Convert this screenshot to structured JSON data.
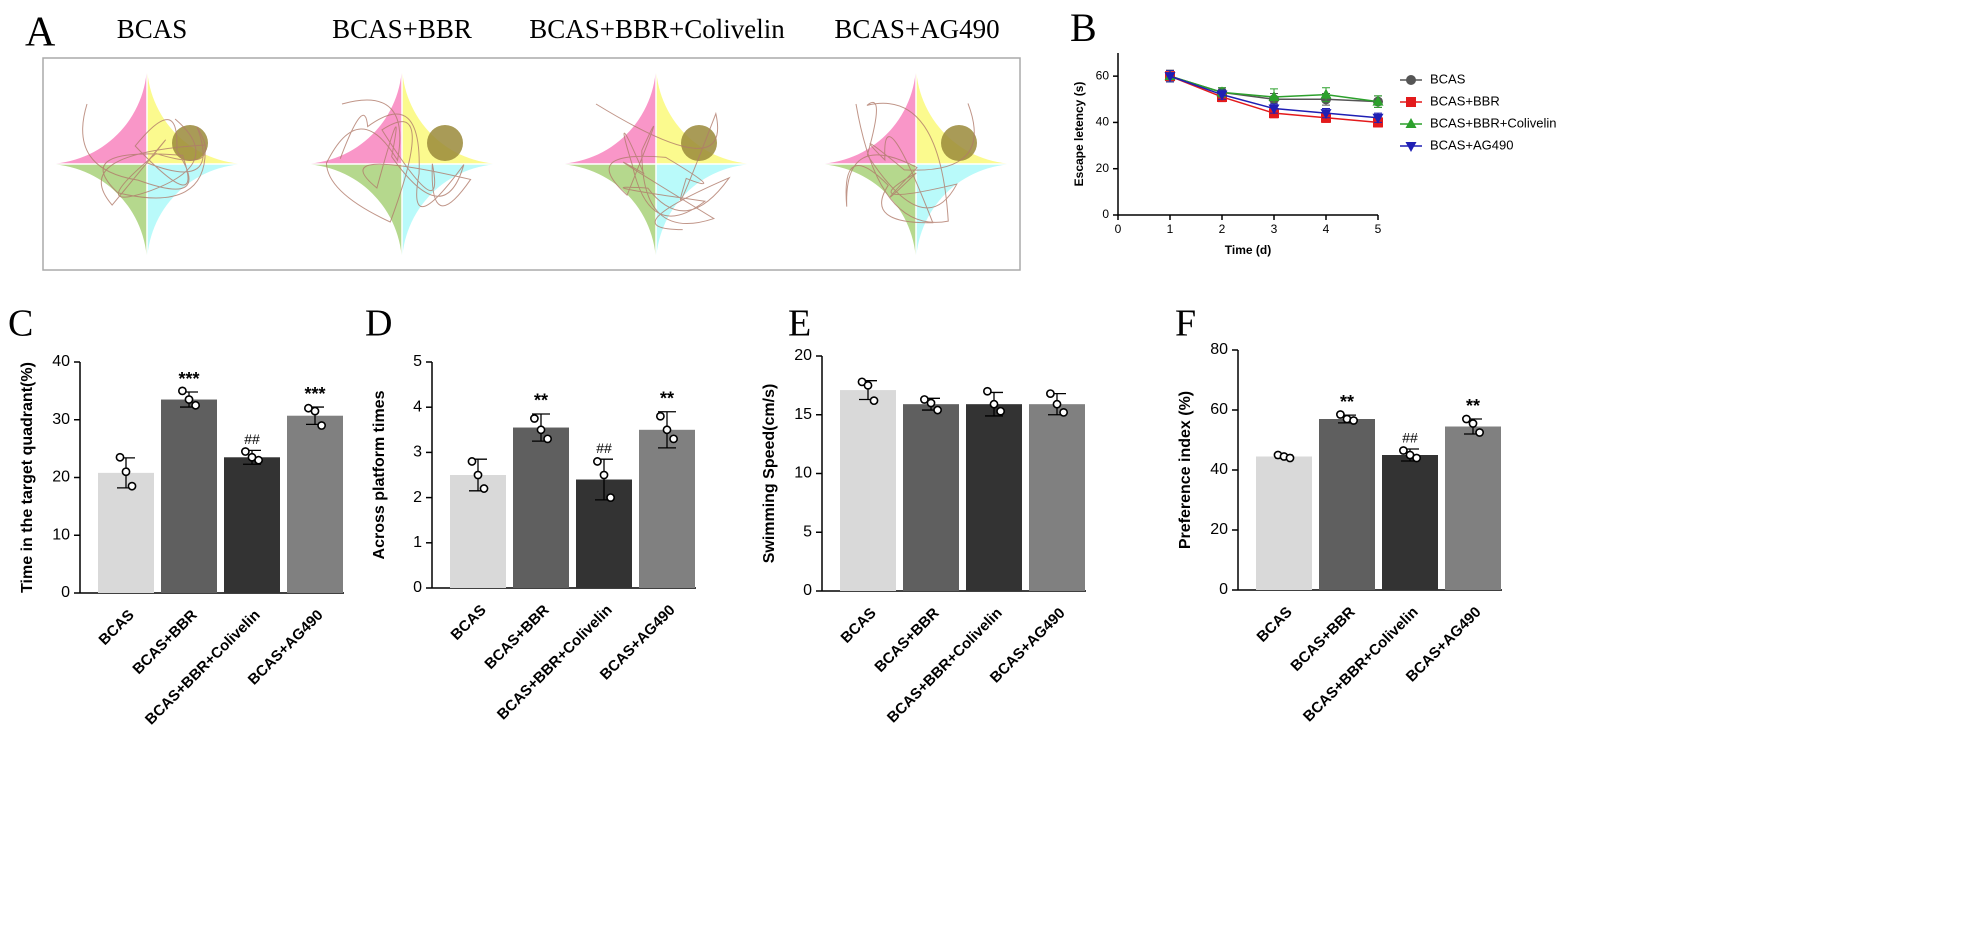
{
  "panel_a": {
    "letter": "A",
    "groups": [
      "BCAS",
      "BCAS+BBR",
      "BCAS+BBR+Colivelin",
      "BCAS+AG490"
    ]
  },
  "chart_data": [
    {
      "type": "line",
      "panel": "B",
      "xlabel": "Time (d)",
      "ylabel": "Escape letency (s)",
      "x": [
        1,
        2,
        3,
        4,
        5
      ],
      "xlim": [
        0,
        5
      ],
      "xticks": [
        0,
        1,
        2,
        3,
        4,
        5
      ],
      "ylim": [
        0,
        70
      ],
      "yticks": [
        0,
        20,
        40,
        60
      ],
      "series": [
        {
          "name": "BCAS",
          "color": "#555555",
          "marker": "circle",
          "values": [
            60,
            53,
            50,
            50,
            49
          ],
          "errors": [
            2.5,
            2,
            2.5,
            2.5,
            2.5
          ]
        },
        {
          "name": "BCAS+BBR",
          "color": "#e31a1c",
          "marker": "square",
          "values": [
            60,
            51,
            44,
            42,
            40
          ],
          "errors": [
            2.5,
            2,
            2,
            2,
            2
          ]
        },
        {
          "name": "BCAS+BBR+Colivelin",
          "color": "#2ca02c",
          "marker": "triangle",
          "values": [
            60,
            53,
            51,
            52,
            49
          ],
          "errors": [
            2.5,
            2,
            3.5,
            3,
            2.5
          ]
        },
        {
          "name": "BCAS+AG490",
          "color": "#1f1fb4",
          "marker": "triangle-down",
          "values": [
            60,
            52,
            46,
            44,
            42
          ],
          "errors": [
            2.5,
            2,
            2,
            2,
            2
          ]
        }
      ]
    },
    {
      "type": "bar",
      "panel": "C",
      "ylabel": "Time in the target quadrant(%)",
      "categories": [
        "BCAS",
        "BCAS+BBR",
        "BCAS+BBR+Colivelin",
        "BCAS+AG490"
      ],
      "colors": [
        "#d9d9d9",
        "#5f5f5f",
        "#333333",
        "#808080"
      ],
      "values": [
        20.8,
        33.5,
        23.5,
        30.7
      ],
      "errors": [
        2.6,
        1.3,
        1.2,
        1.5
      ],
      "points": [
        [
          23.5,
          21,
          18.5
        ],
        [
          35,
          33.5,
          32.5
        ],
        [
          24.5,
          23.5,
          23
        ],
        [
          32,
          31.5,
          29
        ]
      ],
      "annotations": [
        null,
        "***",
        "##",
        "***"
      ],
      "ylim": [
        0,
        40
      ],
      "yticks": [
        0,
        10,
        20,
        30,
        40
      ]
    },
    {
      "type": "bar",
      "panel": "D",
      "ylabel": "Across platform times",
      "categories": [
        "BCAS",
        "BCAS+BBR",
        "BCAS+BBR+Colivelin",
        "BCAS+AG490"
      ],
      "colors": [
        "#d9d9d9",
        "#5f5f5f",
        "#333333",
        "#808080"
      ],
      "values": [
        2.5,
        3.55,
        2.4,
        3.5
      ],
      "errors": [
        0.35,
        0.3,
        0.45,
        0.4
      ],
      "points": [
        [
          2.8,
          2.5,
          2.2
        ],
        [
          3.75,
          3.5,
          3.3
        ],
        [
          2.8,
          2.5,
          2.0
        ],
        [
          3.8,
          3.5,
          3.3
        ]
      ],
      "annotations": [
        null,
        "**",
        "##",
        "**"
      ],
      "ylim": [
        0,
        5
      ],
      "yticks": [
        0,
        1,
        2,
        3,
        4,
        5
      ]
    },
    {
      "type": "bar",
      "panel": "E",
      "ylabel": "Swimming Speed(cm/s)",
      "categories": [
        "BCAS",
        "BCAS+BBR",
        "BCAS+BBR+Colivelin",
        "BCAS+AG490"
      ],
      "colors": [
        "#d9d9d9",
        "#5f5f5f",
        "#333333",
        "#808080"
      ],
      "values": [
        17.1,
        15.9,
        15.9,
        15.9
      ],
      "errors": [
        0.8,
        0.5,
        1.0,
        0.9
      ],
      "points": [
        [
          17.8,
          17.5,
          16.2
        ],
        [
          16.3,
          16,
          15.4
        ],
        [
          17,
          15.9,
          15.3
        ],
        [
          16.8,
          15.9,
          15.2
        ]
      ],
      "ylim": [
        0,
        20
      ],
      "yticks": [
        0,
        5,
        10,
        15,
        20
      ]
    },
    {
      "type": "bar",
      "panel": "F",
      "ylabel": "Preference index (%)",
      "categories": [
        "BCAS",
        "BCAS+BBR",
        "BCAS+BBR+Colivelin",
        "BCAS+AG490"
      ],
      "colors": [
        "#d9d9d9",
        "#5f5f5f",
        "#333333",
        "#808080"
      ],
      "values": [
        44.5,
        57,
        45,
        54.5
      ],
      "errors": [
        0.5,
        1.3,
        2,
        2.5
      ],
      "points": [
        [
          45,
          44.5,
          44
        ],
        [
          58.5,
          57,
          56.5
        ],
        [
          46.5,
          45,
          44
        ],
        [
          57,
          55.5,
          52.5
        ]
      ],
      "annotations": [
        null,
        "**",
        "##",
        "**"
      ],
      "ylim": [
        0,
        80
      ],
      "yticks": [
        0,
        20,
        40,
        60,
        80
      ]
    }
  ]
}
